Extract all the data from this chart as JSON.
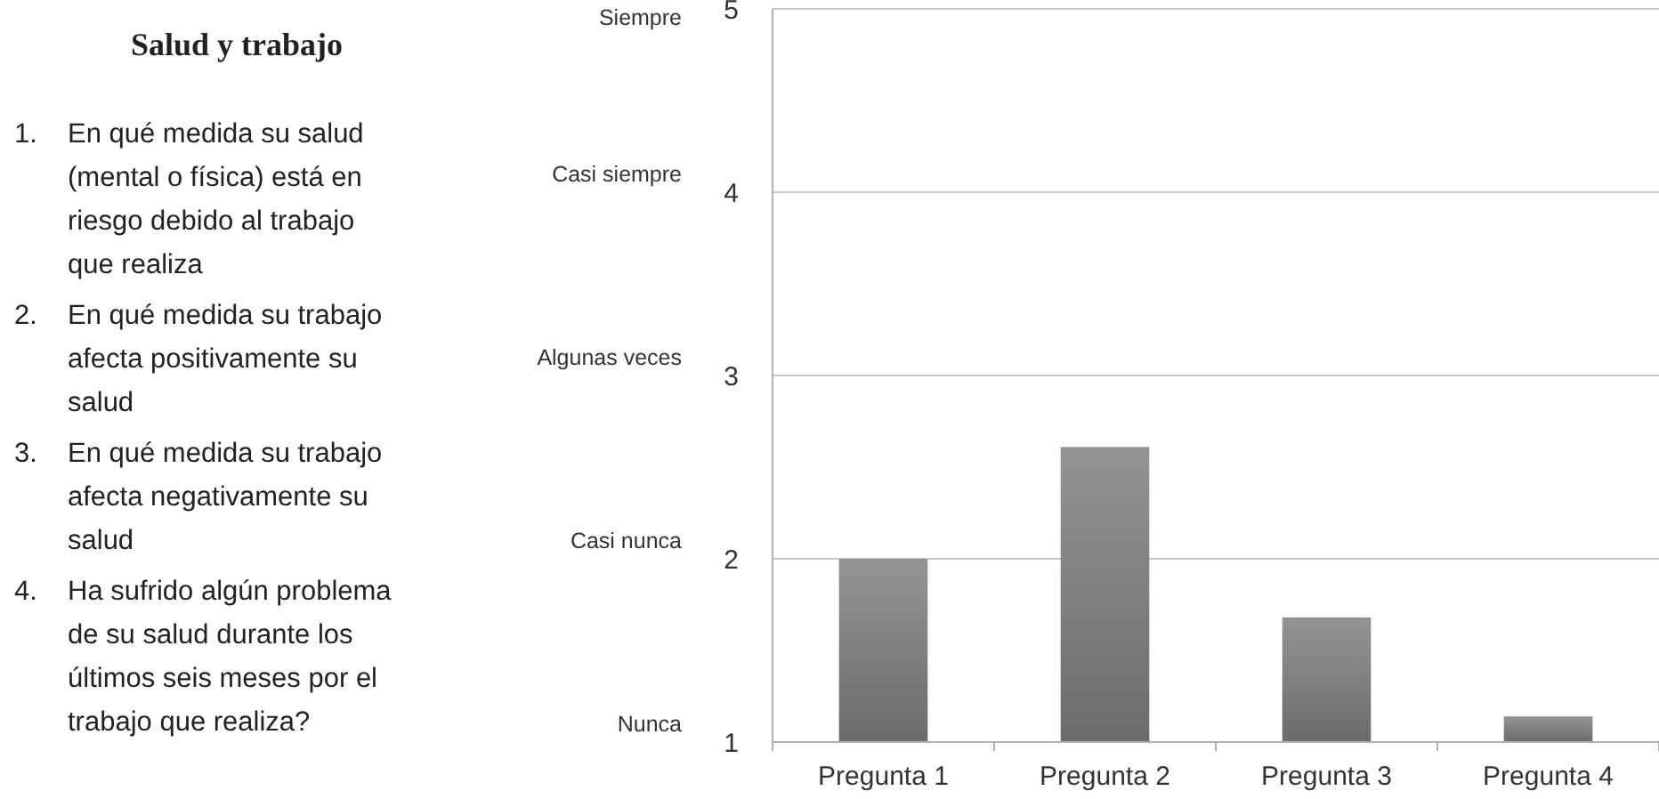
{
  "chart_data": [
    {
      "type": "other",
      "title": "Salud y trabajo",
      "annotations": [
        "1. En qué medida su salud (mental o física) está en riesgo debido al trabajo que realiza",
        "2. En qué medida su trabajo afecta positivamente su salud",
        "3. En qué medida su trabajo afecta negativamente su salud",
        "4. Ha sufrido algún problema de su salud durante los últimos seis meses por el trabajo que realiza?"
      ]
    },
    {
      "type": "bar",
      "categories": [
        "Pregunta 1",
        "Pregunta 2",
        "Pregunta 3",
        "Pregunta 4"
      ],
      "values": [
        2.0,
        2.61,
        1.68,
        1.14
      ],
      "color": "#7e7e80",
      "ylim": [
        1,
        5
      ],
      "yticks": [
        1,
        2,
        3,
        4,
        5
      ],
      "grid": "y",
      "annotations": [
        "Nunca",
        "Casi nunca",
        "Algunas veces",
        "Casi siempre",
        "Siempre"
      ]
    }
  ]
}
